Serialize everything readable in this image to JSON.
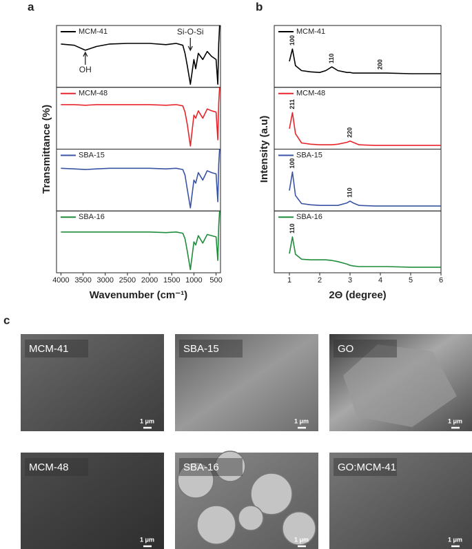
{
  "panel_labels": [
    "a",
    "b",
    "c"
  ],
  "chart_data": [
    {
      "type": "line",
      "x_label": "Wavenumber (cm⁻¹)",
      "y_label": "Transmittance (%)",
      "xlim": [
        4100,
        400
      ],
      "xticks": [
        4000,
        3500,
        3000,
        2500,
        2000,
        1500,
        1000,
        500
      ],
      "ylim": [
        0,
        100
      ],
      "x": [
        4000,
        3700,
        3450,
        3200,
        2900,
        2500,
        2000,
        1630,
        1400,
        1250,
        1200,
        1150,
        1080,
        1000,
        960,
        900,
        800,
        700,
        600,
        500,
        460,
        440,
        420
      ],
      "annotations": [
        {
          "text": "OH",
          "x": 3450
        },
        {
          "text": "Si-O-Si",
          "x": 1080
        }
      ],
      "series": [
        {
          "name": "MCM-41",
          "color": "#000000",
          "values": [
            70,
            68,
            60,
            66,
            70,
            71,
            71,
            69,
            71,
            68,
            55,
            35,
            5,
            45,
            30,
            55,
            45,
            58,
            50,
            45,
            5,
            70,
            100
          ]
        },
        {
          "name": "MCM-48",
          "color": "#e8242a",
          "values": [
            72,
            72,
            71,
            72,
            72,
            72,
            72,
            71,
            72,
            70,
            60,
            40,
            5,
            55,
            50,
            62,
            50,
            65,
            62,
            60,
            15,
            75,
            100
          ]
        },
        {
          "name": "SBA-15",
          "color": "#3953a4",
          "values": [
            69,
            68,
            67,
            68,
            69,
            69,
            69,
            68,
            69,
            67,
            58,
            35,
            5,
            50,
            45,
            62,
            50,
            65,
            62,
            60,
            15,
            75,
            100
          ]
        },
        {
          "name": "SBA-16",
          "color": "#1e8c3a",
          "values": [
            66,
            66,
            66,
            66,
            66,
            66,
            66,
            65,
            66,
            64,
            55,
            35,
            5,
            50,
            45,
            60,
            48,
            62,
            60,
            58,
            20,
            75,
            100
          ]
        }
      ]
    },
    {
      "type": "line",
      "x_label": "2Θ (degree)",
      "y_label": "Intensity (a.u)",
      "xlim": [
        0.5,
        6
      ],
      "xticks": [
        1,
        2,
        3,
        4,
        5,
        6
      ],
      "ylim": [
        0,
        100
      ],
      "x": [
        1.0,
        1.1,
        1.2,
        1.4,
        1.7,
        2.0,
        2.2,
        2.4,
        2.6,
        2.9,
        3.0,
        3.1,
        3.3,
        3.8,
        4.0,
        4.2,
        5,
        6
      ],
      "series": [
        {
          "name": "MCM-41",
          "color": "#000000",
          "values": [
            42,
            62,
            35,
            27,
            25,
            24,
            27,
            33,
            27,
            24,
            24,
            23,
            23,
            23,
            23,
            23,
            22,
            22
          ],
          "peaks": [
            {
              "label": "100",
              "x": 1.1
            },
            {
              "label": "110",
              "x": 2.4
            },
            {
              "label": "200",
              "x": 4.0
            }
          ]
        },
        {
          "name": "MCM-48",
          "color": "#e8242a",
          "values": [
            33,
            59,
            25,
            10,
            8,
            7,
            7,
            7,
            8,
            11,
            13,
            11,
            7,
            6,
            6,
            6,
            6,
            6
          ],
          "peaks": [
            {
              "label": "211",
              "x": 1.1
            },
            {
              "label": "220",
              "x": 3.0
            }
          ]
        },
        {
          "name": "SBA-15",
          "color": "#3953a4",
          "values": [
            33,
            63,
            25,
            12,
            10,
            9,
            9,
            9,
            9,
            13,
            16,
            13,
            9,
            8,
            8,
            8,
            8,
            8
          ],
          "peaks": [
            {
              "label": "100",
              "x": 1.1
            },
            {
              "label": "110",
              "x": 3.0
            }
          ]
        },
        {
          "name": "SBA-16",
          "color": "#1e8c3a",
          "values": [
            31,
            58,
            30,
            22,
            21,
            21,
            21,
            20,
            18,
            14,
            12,
            11,
            10,
            10,
            10,
            10,
            9,
            9
          ],
          "peaks": [
            {
              "label": "110",
              "x": 1.1
            }
          ]
        }
      ]
    }
  ],
  "images": [
    {
      "label": "MCM-41",
      "scale_bar": "1 μm"
    },
    {
      "label": "SBA-15",
      "scale_bar": "1 μm"
    },
    {
      "label": "GO",
      "scale_bar": "1 μm"
    },
    {
      "label": "MCM-48",
      "scale_bar": "1 μm"
    },
    {
      "label": "SBA-16",
      "scale_bar": "1 μm"
    },
    {
      "label": "GO:MCM-41",
      "scale_bar": "1 μm"
    }
  ]
}
